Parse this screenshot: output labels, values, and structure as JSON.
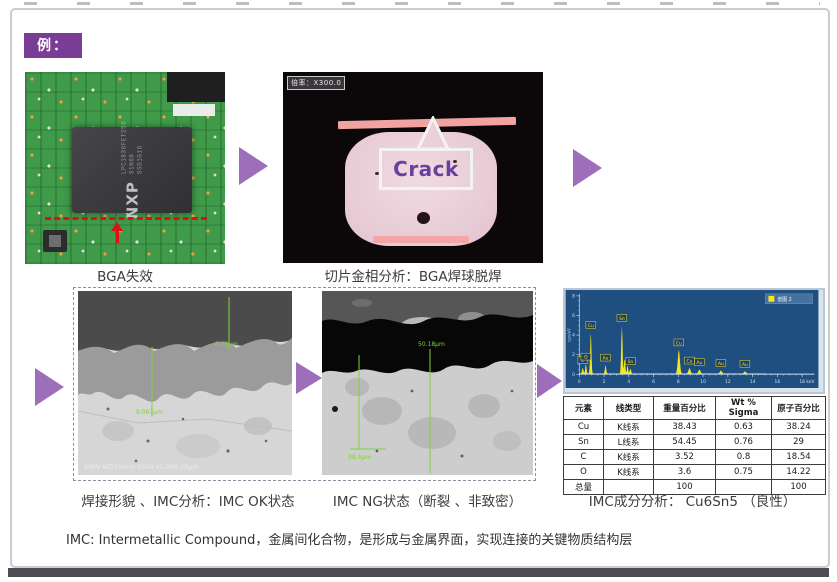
{
  "badge": {
    "label": "例："
  },
  "figures": {
    "pcb": {
      "caption": "BGA失效",
      "chip_brand": "NXP",
      "chip_lines": [
        "LPC1830FET256",
        "S1N69",
        "SSD1G16"
      ]
    },
    "metallography": {
      "caption": "切片金相分析：BGA焊球脱焊",
      "magnification": "倍率：X300.0",
      "callout": "Crack"
    },
    "sem_ok": {
      "caption": "焊接形貌 、IMC分析：IMC  OK状态",
      "measurements": [
        "8.04µm",
        "9.067µm"
      ],
      "info_bar": "20kV  WD10mm  SS40  x2,000  10µm"
    },
    "sem_ng": {
      "caption": "IMC NG状态（断裂 、非致密）",
      "measurements": [
        "50.18µm",
        "38.4µm"
      ]
    },
    "eds": {
      "caption": "IMC成分分析： Cu6Sn5 （良性）",
      "legend": "谱图 2"
    }
  },
  "table": {
    "headers": [
      "元素",
      "线类型",
      "重量百分比",
      "Wt % Sigma",
      "原子百分比"
    ],
    "rows": [
      [
        "Cu",
        "K线系",
        "38.43",
        "0.63",
        "38.24"
      ],
      [
        "Sn",
        "L线系",
        "54.45",
        "0.76",
        "29"
      ],
      [
        "C",
        "K线系",
        "3.52",
        "0.8",
        "18.54"
      ],
      [
        "O",
        "K线系",
        "3.6",
        "0.75",
        "14.22"
      ],
      [
        "总量",
        "",
        "100",
        "",
        "100"
      ]
    ]
  },
  "note": "IMC:  Intermetallic Compound，金属间化合物，是形成与金属界面，实现连接的关键物质结构层",
  "chart_data": {
    "type": "area",
    "xlabel": "keV",
    "ylabel": "cps/eV",
    "xlim": [
      0,
      19
    ],
    "ylim": [
      0,
      8
    ],
    "x_ticks": [
      0,
      2,
      4,
      6,
      8,
      10,
      12,
      14,
      16,
      18
    ],
    "y_ticks": [
      0,
      2,
      4,
      6,
      8
    ],
    "legend": [
      "谱图 2"
    ],
    "legend_position": "top-right",
    "grid": false,
    "series": [
      {
        "name": "谱图 2",
        "color": "#f5e71c",
        "peaks": [
          {
            "x": 0.28,
            "h": 0.6,
            "label": "C"
          },
          {
            "x": 0.53,
            "h": 0.95,
            "label": "O"
          },
          {
            "x": 0.93,
            "h": 4.2,
            "label": "Cu"
          },
          {
            "x": 2.12,
            "h": 0.85,
            "label": "Au"
          },
          {
            "x": 3.44,
            "h": 4.9,
            "label": "Sn"
          },
          {
            "x": 3.66,
            "h": 1.5
          },
          {
            "x": 3.9,
            "h": 0.8
          },
          {
            "x": 4.13,
            "h": 0.5,
            "label": "Sn"
          },
          {
            "x": 8.04,
            "h": 2.4,
            "label": "Cu"
          },
          {
            "x": 8.9,
            "h": 0.55,
            "label": "Cu"
          },
          {
            "x": 9.7,
            "h": 0.4,
            "label": "Au"
          },
          {
            "x": 11.44,
            "h": 0.3,
            "label": "Au"
          },
          {
            "x": 13.38,
            "h": 0.22,
            "label": "Au"
          }
        ]
      }
    ]
  },
  "colors": {
    "accent_purple": "#7a3d96",
    "arrow_purple": "#9d6fba",
    "eds_plot_bg": "#1e4f80",
    "spectrum_yellow": "#f5e71c",
    "annotation_green": "#7ed435",
    "alert_red": "#e01010",
    "bottom_bar": "#4c4c55"
  }
}
